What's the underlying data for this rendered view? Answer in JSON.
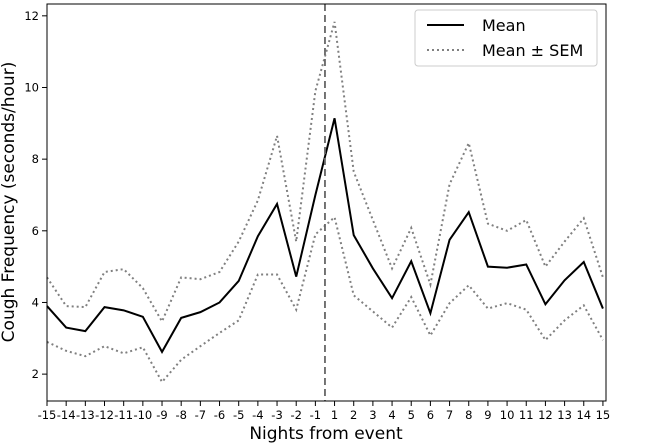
{
  "chart_data": {
    "type": "line",
    "title": "",
    "xlabel": "Nights from event",
    "ylabel": "Cough Frequency (seconds/hour)",
    "x": [
      -15,
      -14,
      -13,
      -12,
      -11,
      -10,
      -9,
      -8,
      -7,
      -6,
      -5,
      -4,
      -3,
      -2,
      -1,
      1,
      2,
      3,
      4,
      5,
      6,
      7,
      8,
      9,
      10,
      11,
      12,
      13,
      14,
      15
    ],
    "x_tick_labels": [
      "-15",
      "-14",
      "-13",
      "-12",
      "-11",
      "-10",
      "-9",
      "-8",
      "-7",
      "-6",
      "-5",
      "-4",
      "-3",
      "-2",
      "-1",
      "1",
      "2",
      "3",
      "4",
      "5",
      "6",
      "7",
      "8",
      "9",
      "10",
      "11",
      "12",
      "13",
      "14",
      "15"
    ],
    "ylim": [
      1.25,
      12.33
    ],
    "y_ticks": [
      2,
      4,
      6,
      8,
      10,
      12
    ],
    "event_marker": "dashed vertical line between -1 and 1",
    "grid": false,
    "legend_position": "top-right",
    "series": [
      {
        "name": "Mean",
        "style": "solid",
        "color": "#000000",
        "values": [
          3.9,
          3.3,
          3.2,
          3.87,
          3.78,
          3.6,
          2.62,
          3.57,
          3.73,
          4.0,
          4.6,
          5.85,
          6.75,
          4.72,
          7.0,
          9.14,
          5.88,
          4.95,
          4.12,
          5.15,
          3.7,
          5.75,
          6.52,
          5.0,
          4.97,
          5.06,
          3.95,
          4.62,
          5.13,
          3.83
        ]
      },
      {
        "name": "Mean ± SEM",
        "style": "dotted",
        "color": "#808080",
        "values": [
          4.7,
          3.9,
          3.87,
          4.85,
          4.93,
          4.4,
          3.47,
          4.7,
          4.65,
          4.85,
          5.7,
          6.85,
          8.65,
          5.7,
          9.9,
          11.83,
          7.65,
          6.3,
          4.95,
          6.08,
          4.5,
          7.3,
          8.45,
          6.2,
          6.0,
          6.3,
          5.0,
          5.7,
          6.35,
          4.7
        ]
      },
      {
        "name": "",
        "style": "dotted",
        "color": "#808080",
        "values": [
          2.9,
          2.65,
          2.5,
          2.78,
          2.58,
          2.75,
          1.78,
          2.4,
          2.78,
          3.15,
          3.5,
          4.78,
          4.78,
          3.8,
          5.9,
          6.38,
          4.2,
          3.75,
          3.3,
          4.15,
          3.08,
          3.98,
          4.48,
          3.83,
          3.98,
          3.8,
          2.95,
          3.5,
          3.92,
          2.95
        ]
      }
    ],
    "legend": [
      "Mean",
      "Mean ± SEM"
    ]
  }
}
